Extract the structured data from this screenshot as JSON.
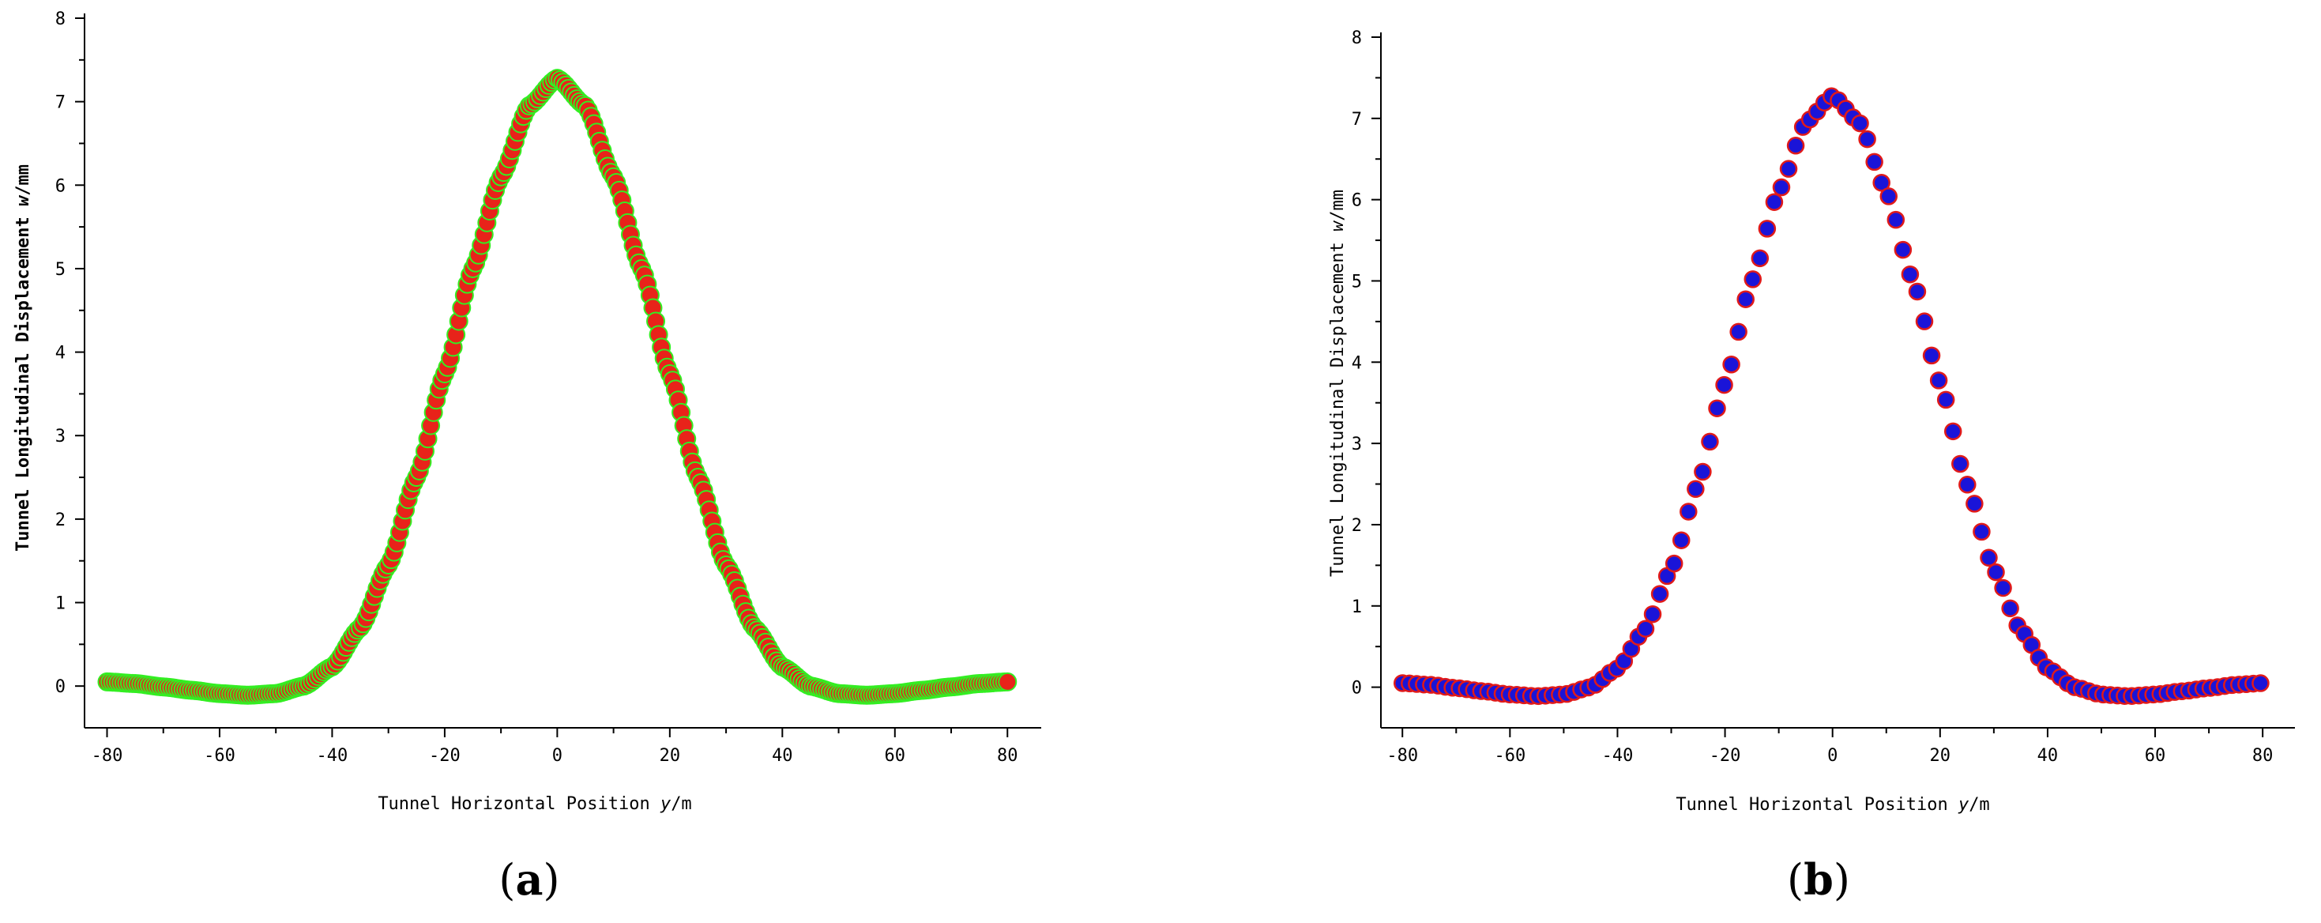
{
  "panels": [
    {
      "panel_label": "a",
      "chart_data": {
        "type": "scatter",
        "xlabel": "Tunnel Horizontal Position ",
        "xlabel_var": "y",
        "xlabel_unit": "/m",
        "ylabel": "Tunnel Longitudinal Displacement ",
        "ylabel_var": "w",
        "ylabel_unit": "/mm",
        "ylabel_bold": true,
        "xlim": [
          -84,
          86
        ],
        "ylim": [
          -0.5,
          8
        ],
        "xticks": [
          -80,
          -60,
          -40,
          -20,
          0,
          20,
          40,
          60,
          80
        ],
        "yticks": [
          0,
          1,
          2,
          3,
          4,
          5,
          6,
          7,
          8
        ],
        "grid": false,
        "marker_fill": "#e8231a",
        "marker_stroke": "#33ee22",
        "dense_markers": true,
        "series": [
          {
            "x": [
              -80,
              -75,
              -70,
              -65,
              -60,
              -55,
              -50,
              -45,
              -40,
              -35,
              -30,
              -25,
              -20,
              -15,
              -10,
              -5,
              0,
              5,
              10,
              15,
              20,
              25,
              30,
              35,
              40,
              45,
              50,
              55,
              60,
              65,
              70,
              75,
              80
            ],
            "values": [
              0.05,
              0.03,
              -0.01,
              -0.05,
              -0.09,
              -0.11,
              -0.09,
              0.0,
              0.23,
              0.7,
              1.45,
              2.5,
              3.74,
              5.0,
              6.1,
              6.95,
              7.28,
              6.95,
              6.1,
              5.0,
              3.74,
              2.5,
              1.45,
              0.7,
              0.23,
              0.0,
              -0.09,
              -0.11,
              -0.09,
              -0.05,
              -0.01,
              0.03,
              0.05
            ]
          }
        ]
      }
    },
    {
      "panel_label": "b",
      "chart_data": {
        "type": "scatter",
        "xlabel": "Tunnel Horizontal Position ",
        "xlabel_var": "y",
        "xlabel_unit": "/m",
        "ylabel": "Tunnel Longitudinal Displacement ",
        "ylabel_var": "w",
        "ylabel_unit": "/mm",
        "ylabel_bold": false,
        "xlim": [
          -84,
          86
        ],
        "ylim": [
          -0.5,
          8
        ],
        "xticks": [
          -80,
          -60,
          -40,
          -20,
          0,
          20,
          40,
          60,
          80
        ],
        "yticks": [
          0,
          1,
          2,
          3,
          4,
          5,
          6,
          7,
          8
        ],
        "grid": false,
        "marker_fill": "#1a14d8",
        "marker_stroke": "#e01a1a",
        "dense_markers": false,
        "series": [
          {
            "x": [
              -80,
              -75,
              -70,
              -65,
              -60,
              -55,
              -50,
              -45,
              -40,
              -35,
              -30,
              -25,
              -20,
              -15,
              -10,
              -5,
              0,
              5,
              10,
              15,
              20,
              25,
              30,
              35,
              40,
              45,
              50,
              55,
              60,
              65,
              70,
              75,
              80
            ],
            "values": [
              0.05,
              0.03,
              -0.01,
              -0.05,
              -0.09,
              -0.11,
              -0.09,
              0.0,
              0.23,
              0.7,
              1.45,
              2.5,
              3.74,
              5.0,
              6.1,
              6.95,
              7.28,
              6.95,
              6.1,
              5.0,
              3.74,
              2.5,
              1.45,
              0.7,
              0.23,
              0.0,
              -0.09,
              -0.11,
              -0.09,
              -0.05,
              -0.01,
              0.03,
              0.05
            ]
          }
        ]
      }
    }
  ]
}
